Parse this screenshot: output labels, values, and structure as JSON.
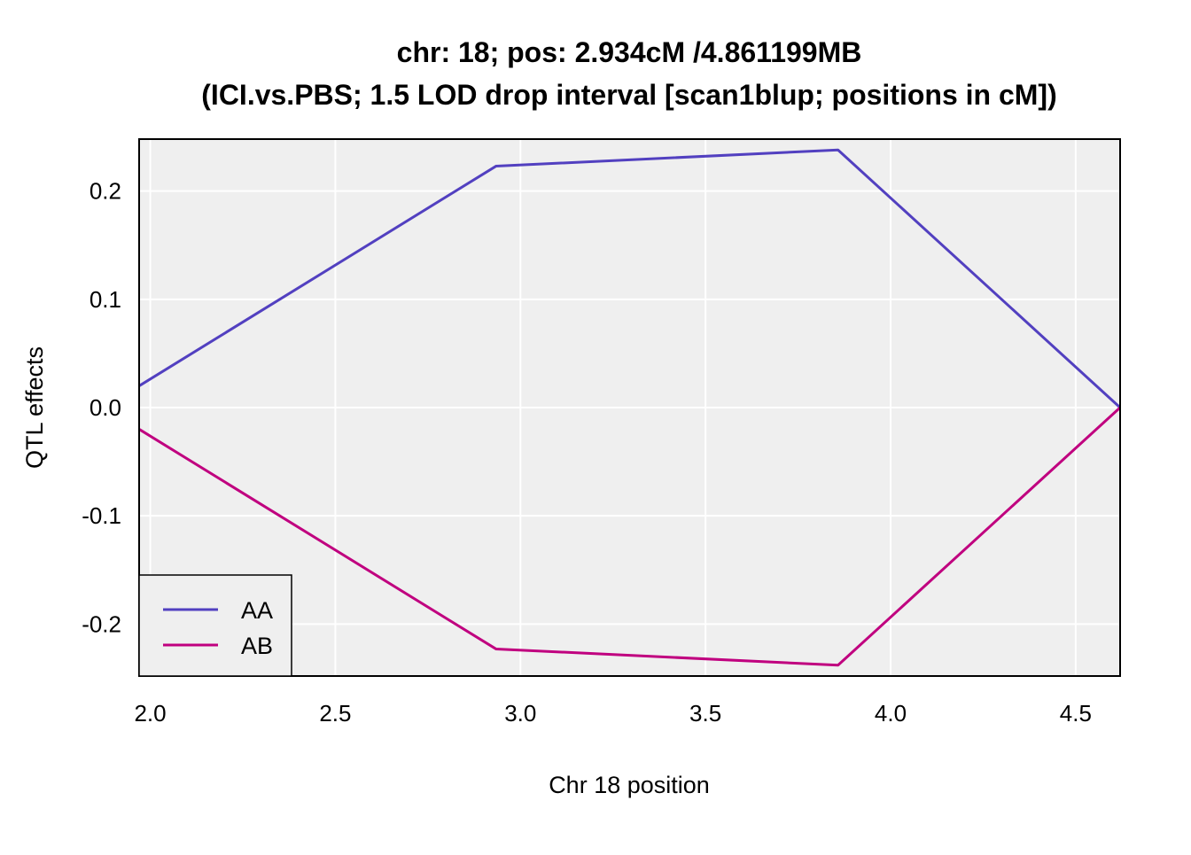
{
  "chart_data": {
    "type": "line",
    "title": "chr: 18; pos: 2.934cM /4.861199MB",
    "subtitle": "(ICI.vs.PBS; 1.5 LOD drop interval [scan1blup; positions in cM])",
    "xlabel": "Chr 18 position",
    "ylabel": "QTL effects",
    "xlim": [
      1.97,
      4.62
    ],
    "ylim": [
      -0.248,
      0.248
    ],
    "xticks": [
      2.0,
      2.5,
      3.0,
      3.5,
      4.0,
      4.5
    ],
    "xtick_labels": [
      "2.0",
      "2.5",
      "3.0",
      "3.5",
      "4.0",
      "4.5"
    ],
    "yticks": [
      0.2,
      0.1,
      0.0,
      -0.1,
      -0.2
    ],
    "ytick_labels": [
      "0.2",
      "0.1",
      "0.0",
      "-0.1",
      "-0.2"
    ],
    "grid": true,
    "legend_position": "bottom-left",
    "x": [
      1.97,
      2.934,
      3.858,
      4.62
    ],
    "series": [
      {
        "name": "AA",
        "color": "#5240c0",
        "values": [
          0.02,
          0.223,
          0.238,
          0.0
        ]
      },
      {
        "name": "AB",
        "color": "#c0007f",
        "values": [
          -0.02,
          -0.223,
          -0.238,
          0.0
        ]
      }
    ]
  }
}
